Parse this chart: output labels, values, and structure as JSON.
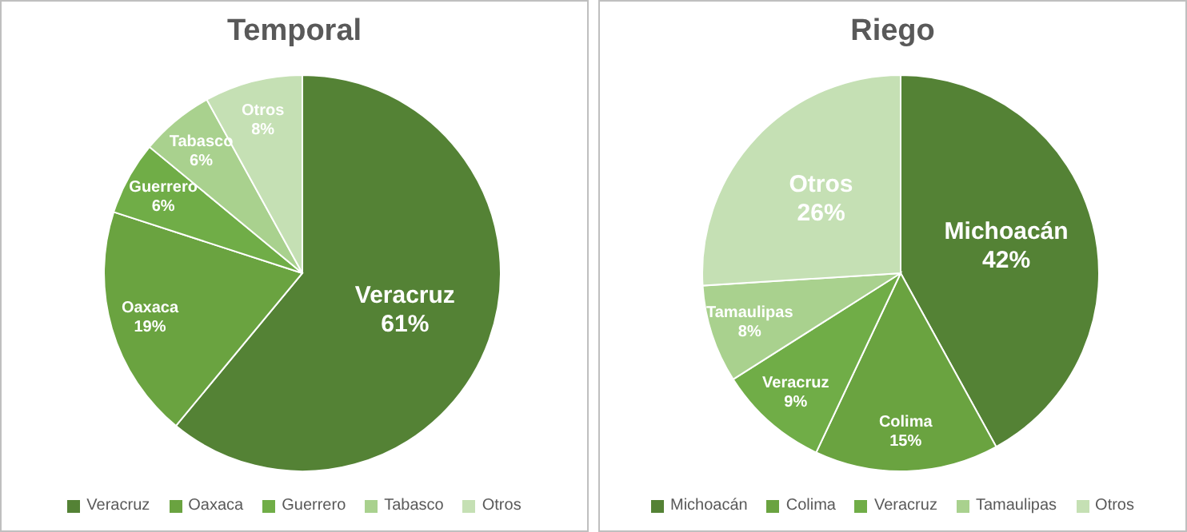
{
  "chart_data": [
    {
      "type": "pie",
      "title": "Temporal",
      "categories": [
        "Veracruz",
        "Oaxaca",
        "Guerrero",
        "Tabasco",
        "Otros"
      ],
      "values": [
        61,
        19,
        6,
        6,
        8
      ],
      "colors": [
        "#548235",
        "#6aa340",
        "#70ad47",
        "#a9d18e",
        "#c5e0b4"
      ],
      "value_labels": [
        "61%",
        "19%",
        "6%",
        "6%",
        "8%"
      ],
      "legend": "bottom"
    },
    {
      "type": "pie",
      "title": "Riego",
      "categories": [
        "Michoacán",
        "Colima",
        "Veracruz",
        "Tamaulipas",
        "Otros"
      ],
      "values": [
        42,
        15,
        9,
        8,
        26
      ],
      "colors": [
        "#548235",
        "#6aa340",
        "#70ad47",
        "#a9d18e",
        "#c5e0b4"
      ],
      "value_labels": [
        "42%",
        "15%",
        "9%",
        "8%",
        "26%"
      ],
      "legend": "bottom"
    }
  ]
}
